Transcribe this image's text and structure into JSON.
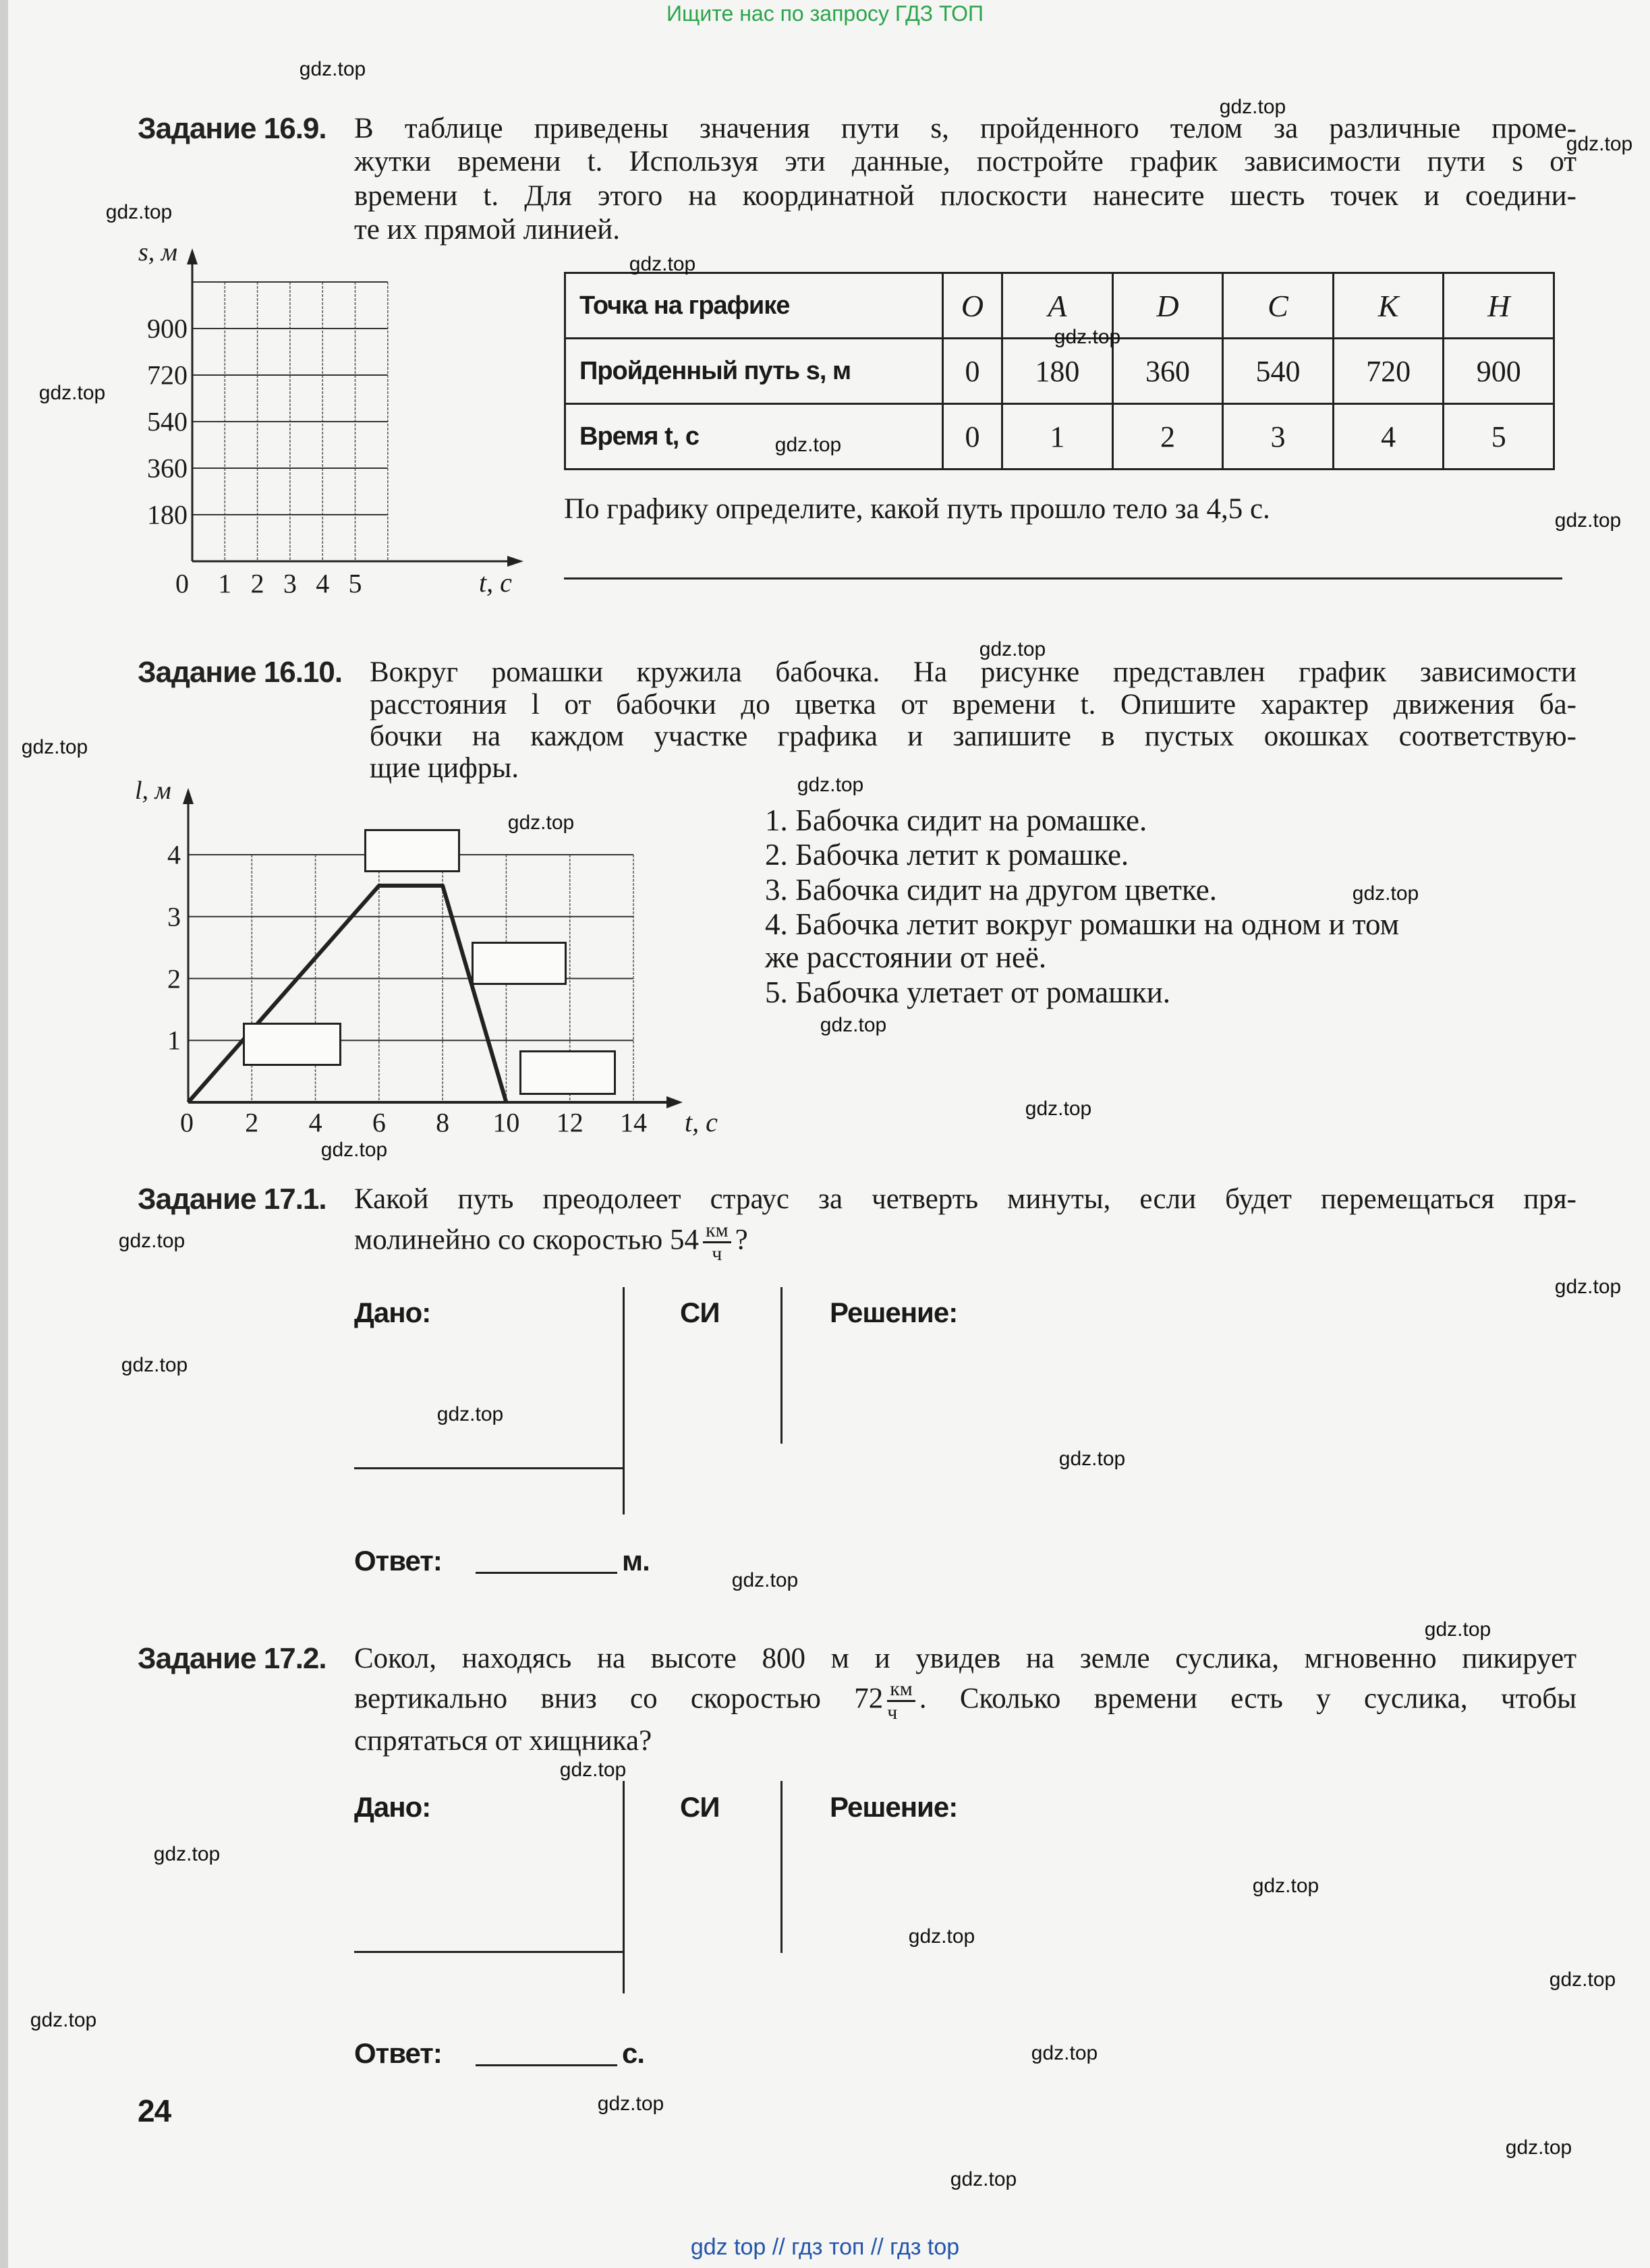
{
  "top_note": "Ищите нас по запросу ГДЗ ТОП",
  "watermark": "gdz.top",
  "footer": "gdz top  //  гдз топ  //  гдз top",
  "page_number": "24",
  "task_16_9": {
    "label": "Задание 16.9.",
    "lines": [
      "В таблице приведены значения пути s, пройденного телом за различные проме-",
      "жутки времени t. Используя эти данные, постройте график зависимости пути s от",
      "времени t. Для этого на координатной плоскости нанесите шесть точек и соедини-",
      "те их прямой линией."
    ],
    "graph": {
      "ylabel": "s, м",
      "xlabel": "t, с",
      "yticks": [
        "900",
        "720",
        "540",
        "360",
        "180"
      ],
      "xticks": [
        "0",
        "1",
        "2",
        "3",
        "4",
        "5"
      ]
    },
    "table": {
      "row_headers": [
        "Точка на графике",
        "Пройденный путь s, м",
        "Время t, с"
      ],
      "points": [
        "O",
        "A",
        "D",
        "C",
        "K",
        "H"
      ],
      "distance": [
        "0",
        "180",
        "360",
        "540",
        "720",
        "900"
      ],
      "time": [
        "0",
        "1",
        "2",
        "3",
        "4",
        "5"
      ]
    },
    "question": "По графику определите, какой путь прошло тело за 4,5 с."
  },
  "task_16_10": {
    "label": "Задание 16.10.",
    "lines": [
      "Вокруг ромашки кружила бабочка. На рисунке представлен график зависимости",
      "расстояния l от бабочки до цветка от времени t. Опишите характер движения ба-",
      "бочки на каждом участке графика и запишите в пустых окошках соответствую-",
      "щие цифры."
    ],
    "options": [
      "1. Бабочка сидит на ромашке.",
      "2. Бабочка летит к ромашке.",
      "3. Бабочка сидит на другом цветке.",
      "4. Бабочка летит вокруг ромашки на одном и том",
      "же расстоянии от неё.",
      "5. Бабочка улетает от ромашки."
    ]
  },
  "chart_data": {
    "type": "line",
    "xlabel": "t, с",
    "ylabel": "l, м",
    "xlim": [
      0,
      14
    ],
    "ylim": [
      0,
      4
    ],
    "xticks": [
      "0",
      "2",
      "4",
      "6",
      "8",
      "10",
      "12",
      "14"
    ],
    "yticks": [
      "1",
      "2",
      "3",
      "4"
    ],
    "grid": true,
    "x": [
      0,
      6,
      8,
      10
    ],
    "y": [
      0,
      3.5,
      3.5,
      0
    ]
  },
  "task_17_1": {
    "label": "Задание 17.1.",
    "line1": "Какой путь преодолеет страус за четверть минуты, если будет перемещаться пря-",
    "line2": "молинейно со скоростью 54",
    "unit_num": "км",
    "unit_den": "ч",
    "line2_end": "?",
    "given": "Дано:",
    "si": "СИ",
    "solution": "Решение:",
    "answer": "Ответ:",
    "answer_unit": "м."
  },
  "task_17_2": {
    "label": "Задание 17.2.",
    "line1": "Сокол, находясь на высоте 800 м и увидев на земле суслика, мгновенно пикирует",
    "line2": "вертикально вниз со скоростью 72",
    "unit_num": "км",
    "unit_den": "ч",
    "line2_end": ". Сколько времени есть у суслика, чтобы",
    "line3": "спрятаться от хищника?",
    "given": "Дано:",
    "si": "СИ",
    "solution": "Решение:",
    "answer": "Ответ:",
    "answer_unit": "с."
  }
}
